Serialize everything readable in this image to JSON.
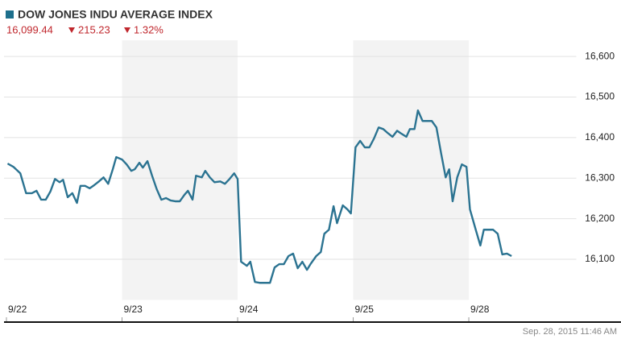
{
  "chart_data": {
    "type": "line",
    "title": "DOW JONES INDU AVERAGE INDEX",
    "price": "16,099.44",
    "change": "215.23",
    "change_pct": "1.32%",
    "timestamp": "Sep. 28, 2015 11:46 AM",
    "xlim": [
      0,
      4.93
    ],
    "xticks": [
      {
        "value": 0,
        "label": "9/22"
      },
      {
        "value": 1,
        "label": "9/23"
      },
      {
        "value": 2,
        "label": "9/24"
      },
      {
        "value": 3,
        "label": "9/25"
      },
      {
        "value": 4,
        "label": "9/28"
      }
    ],
    "ylim": [
      16000,
      16640
    ],
    "yticks": [
      {
        "value": 16100,
        "label": "16,100"
      },
      {
        "value": 16200,
        "label": "16,200"
      },
      {
        "value": 16300,
        "label": "16,300"
      },
      {
        "value": 16400,
        "label": "16,400"
      },
      {
        "value": 16500,
        "label": "16,500"
      },
      {
        "value": 16600,
        "label": "16,600"
      }
    ],
    "grid": true,
    "x": [
      0.01,
      0.06,
      0.12,
      0.17,
      0.22,
      0.26,
      0.3,
      0.34,
      0.38,
      0.42,
      0.46,
      0.49,
      0.53,
      0.57,
      0.61,
      0.64,
      0.68,
      0.72,
      0.76,
      0.8,
      0.84,
      0.88,
      0.92,
      0.95,
      1.0,
      1.04,
      1.08,
      1.11,
      1.15,
      1.18,
      1.22,
      1.26,
      1.3,
      1.34,
      1.38,
      1.42,
      1.46,
      1.5,
      1.54,
      1.57,
      1.61,
      1.64,
      1.69,
      1.72,
      1.76,
      1.8,
      1.85,
      1.89,
      1.93,
      1.97,
      2.0,
      2.03,
      2.08,
      2.11,
      2.15,
      2.19,
      2.23,
      2.28,
      2.32,
      2.36,
      2.4,
      2.44,
      2.48,
      2.52,
      2.56,
      2.6,
      2.63,
      2.68,
      2.72,
      2.75,
      2.79,
      2.83,
      2.86,
      2.91,
      2.95,
      2.98,
      3.02,
      3.06,
      3.1,
      3.14,
      3.18,
      3.22,
      3.26,
      3.3,
      3.34,
      3.38,
      3.41,
      3.46,
      3.49,
      3.53,
      3.56,
      3.6,
      3.64,
      3.68,
      3.72,
      3.76,
      3.8,
      3.83,
      3.86,
      3.9,
      3.94,
      3.98,
      4.01,
      4.06,
      4.1,
      4.13,
      4.17,
      4.21,
      4.25,
      4.29,
      4.33,
      4.37
    ],
    "series": [
      {
        "name": "DOW JONES INDU AVERAGE INDEX",
        "color": "#2b7391",
        "values": [
          16336,
          16328,
          16312,
          16263,
          16263,
          16269,
          16247,
          16247,
          16267,
          16298,
          16290,
          16296,
          16253,
          16263,
          16239,
          16281,
          16281,
          16275,
          16283,
          16292,
          16302,
          16286,
          16322,
          16352,
          16346,
          16334,
          16318,
          16322,
          16338,
          16326,
          16342,
          16306,
          16273,
          16247,
          16251,
          16245,
          16243,
          16243,
          16259,
          16269,
          16247,
          16306,
          16302,
          16318,
          16302,
          16290,
          16292,
          16286,
          16298,
          16312,
          16298,
          16094,
          16084,
          16094,
          16044,
          16042,
          16042,
          16042,
          16080,
          16088,
          16088,
          16108,
          16114,
          16078,
          16094,
          16074,
          16088,
          16108,
          16118,
          16163,
          16173,
          16231,
          16189,
          16233,
          16223,
          16213,
          16376,
          16392,
          16376,
          16376,
          16398,
          16425,
          16421,
          16411,
          16402,
          16417,
          16411,
          16402,
          16421,
          16421,
          16467,
          16441,
          16441,
          16441,
          16425,
          16362,
          16302,
          16322,
          16243,
          16302,
          16334,
          16328,
          16223,
          16173,
          16134,
          16173,
          16173,
          16173,
          16163,
          16112,
          16114,
          16108
        ]
      }
    ]
  }
}
